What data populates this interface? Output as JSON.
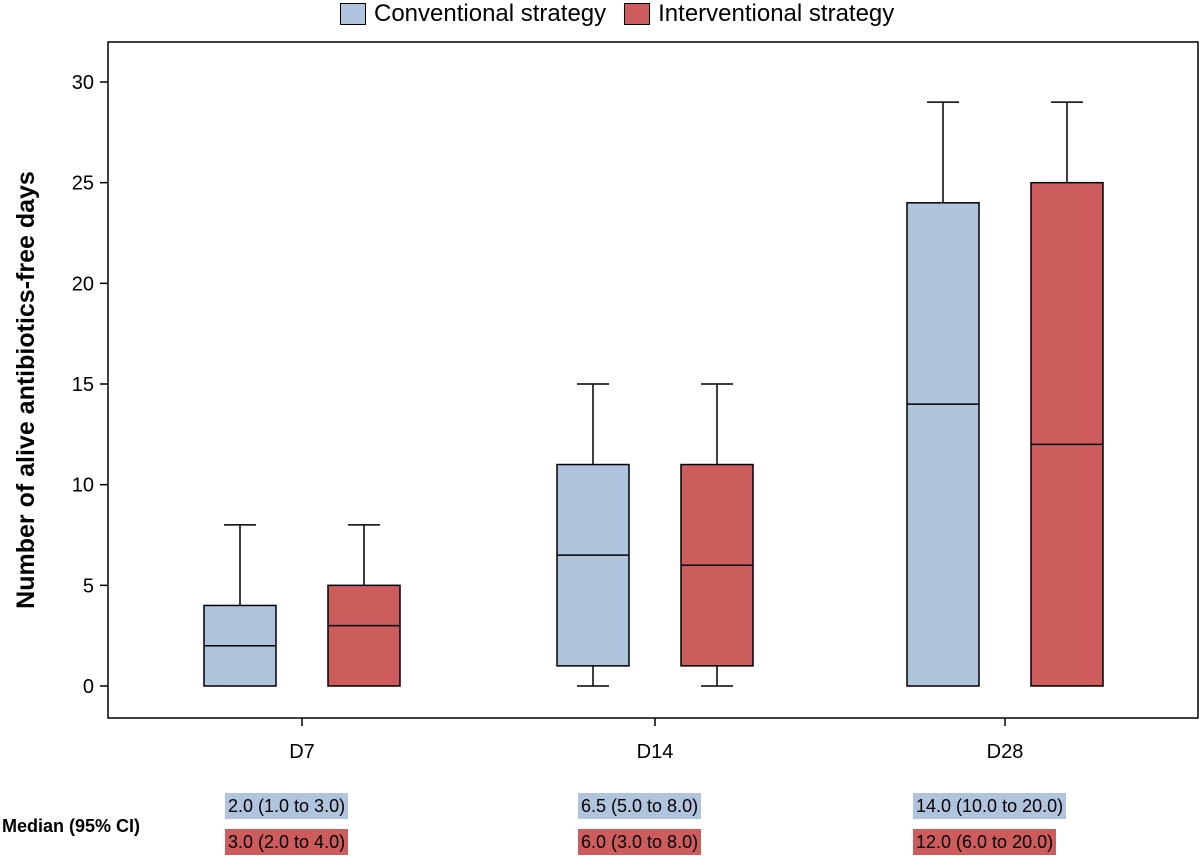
{
  "legend": [
    {
      "label": "Conventional strategy",
      "color": "#b0c4de"
    },
    {
      "label": "Interventional strategy",
      "color": "#cd5c5c"
    }
  ],
  "medians": {
    "title": "Median (95% CI)",
    "conventional": [
      "2.0 (1.0 to 3.0)",
      "6.5 (5.0 to 8.0)",
      "14.0 (10.0 to 20.0)"
    ],
    "interventional": [
      "3.0 (2.0 to 4.0)",
      "6.0 (3.0 to 8.0)",
      "12.0 (6.0 to 20.0)"
    ]
  },
  "chart_data": {
    "type": "boxplot",
    "title": "",
    "xlabel": "",
    "ylabel": "Number of alive antibiotics-free days",
    "categories": [
      "D7",
      "D14",
      "D28"
    ],
    "ylim": [
      -1.5,
      32
    ],
    "yticks": [
      0,
      5,
      10,
      15,
      20,
      25,
      30
    ],
    "grid": false,
    "legend_position": "top",
    "series": [
      {
        "name": "Conventional strategy",
        "color": "#b0c4de",
        "boxes": [
          {
            "whisker_low": 0,
            "q1": 0,
            "median": 2,
            "q3": 4,
            "whisker_high": 8
          },
          {
            "whisker_low": 0,
            "q1": 1,
            "median": 6.5,
            "q3": 11,
            "whisker_high": 15
          },
          {
            "whisker_low": 0,
            "q1": 0,
            "median": 14,
            "q3": 24,
            "whisker_high": 29
          }
        ]
      },
      {
        "name": "Interventional strategy",
        "color": "#cd5c5c",
        "boxes": [
          {
            "whisker_low": 0,
            "q1": 0,
            "median": 3,
            "q3": 5,
            "whisker_high": 8
          },
          {
            "whisker_low": 0,
            "q1": 1,
            "median": 6,
            "q3": 11,
            "whisker_high": 15
          },
          {
            "whisker_low": 0,
            "q1": 0,
            "median": 12,
            "q3": 25,
            "whisker_high": 29
          }
        ]
      }
    ]
  }
}
